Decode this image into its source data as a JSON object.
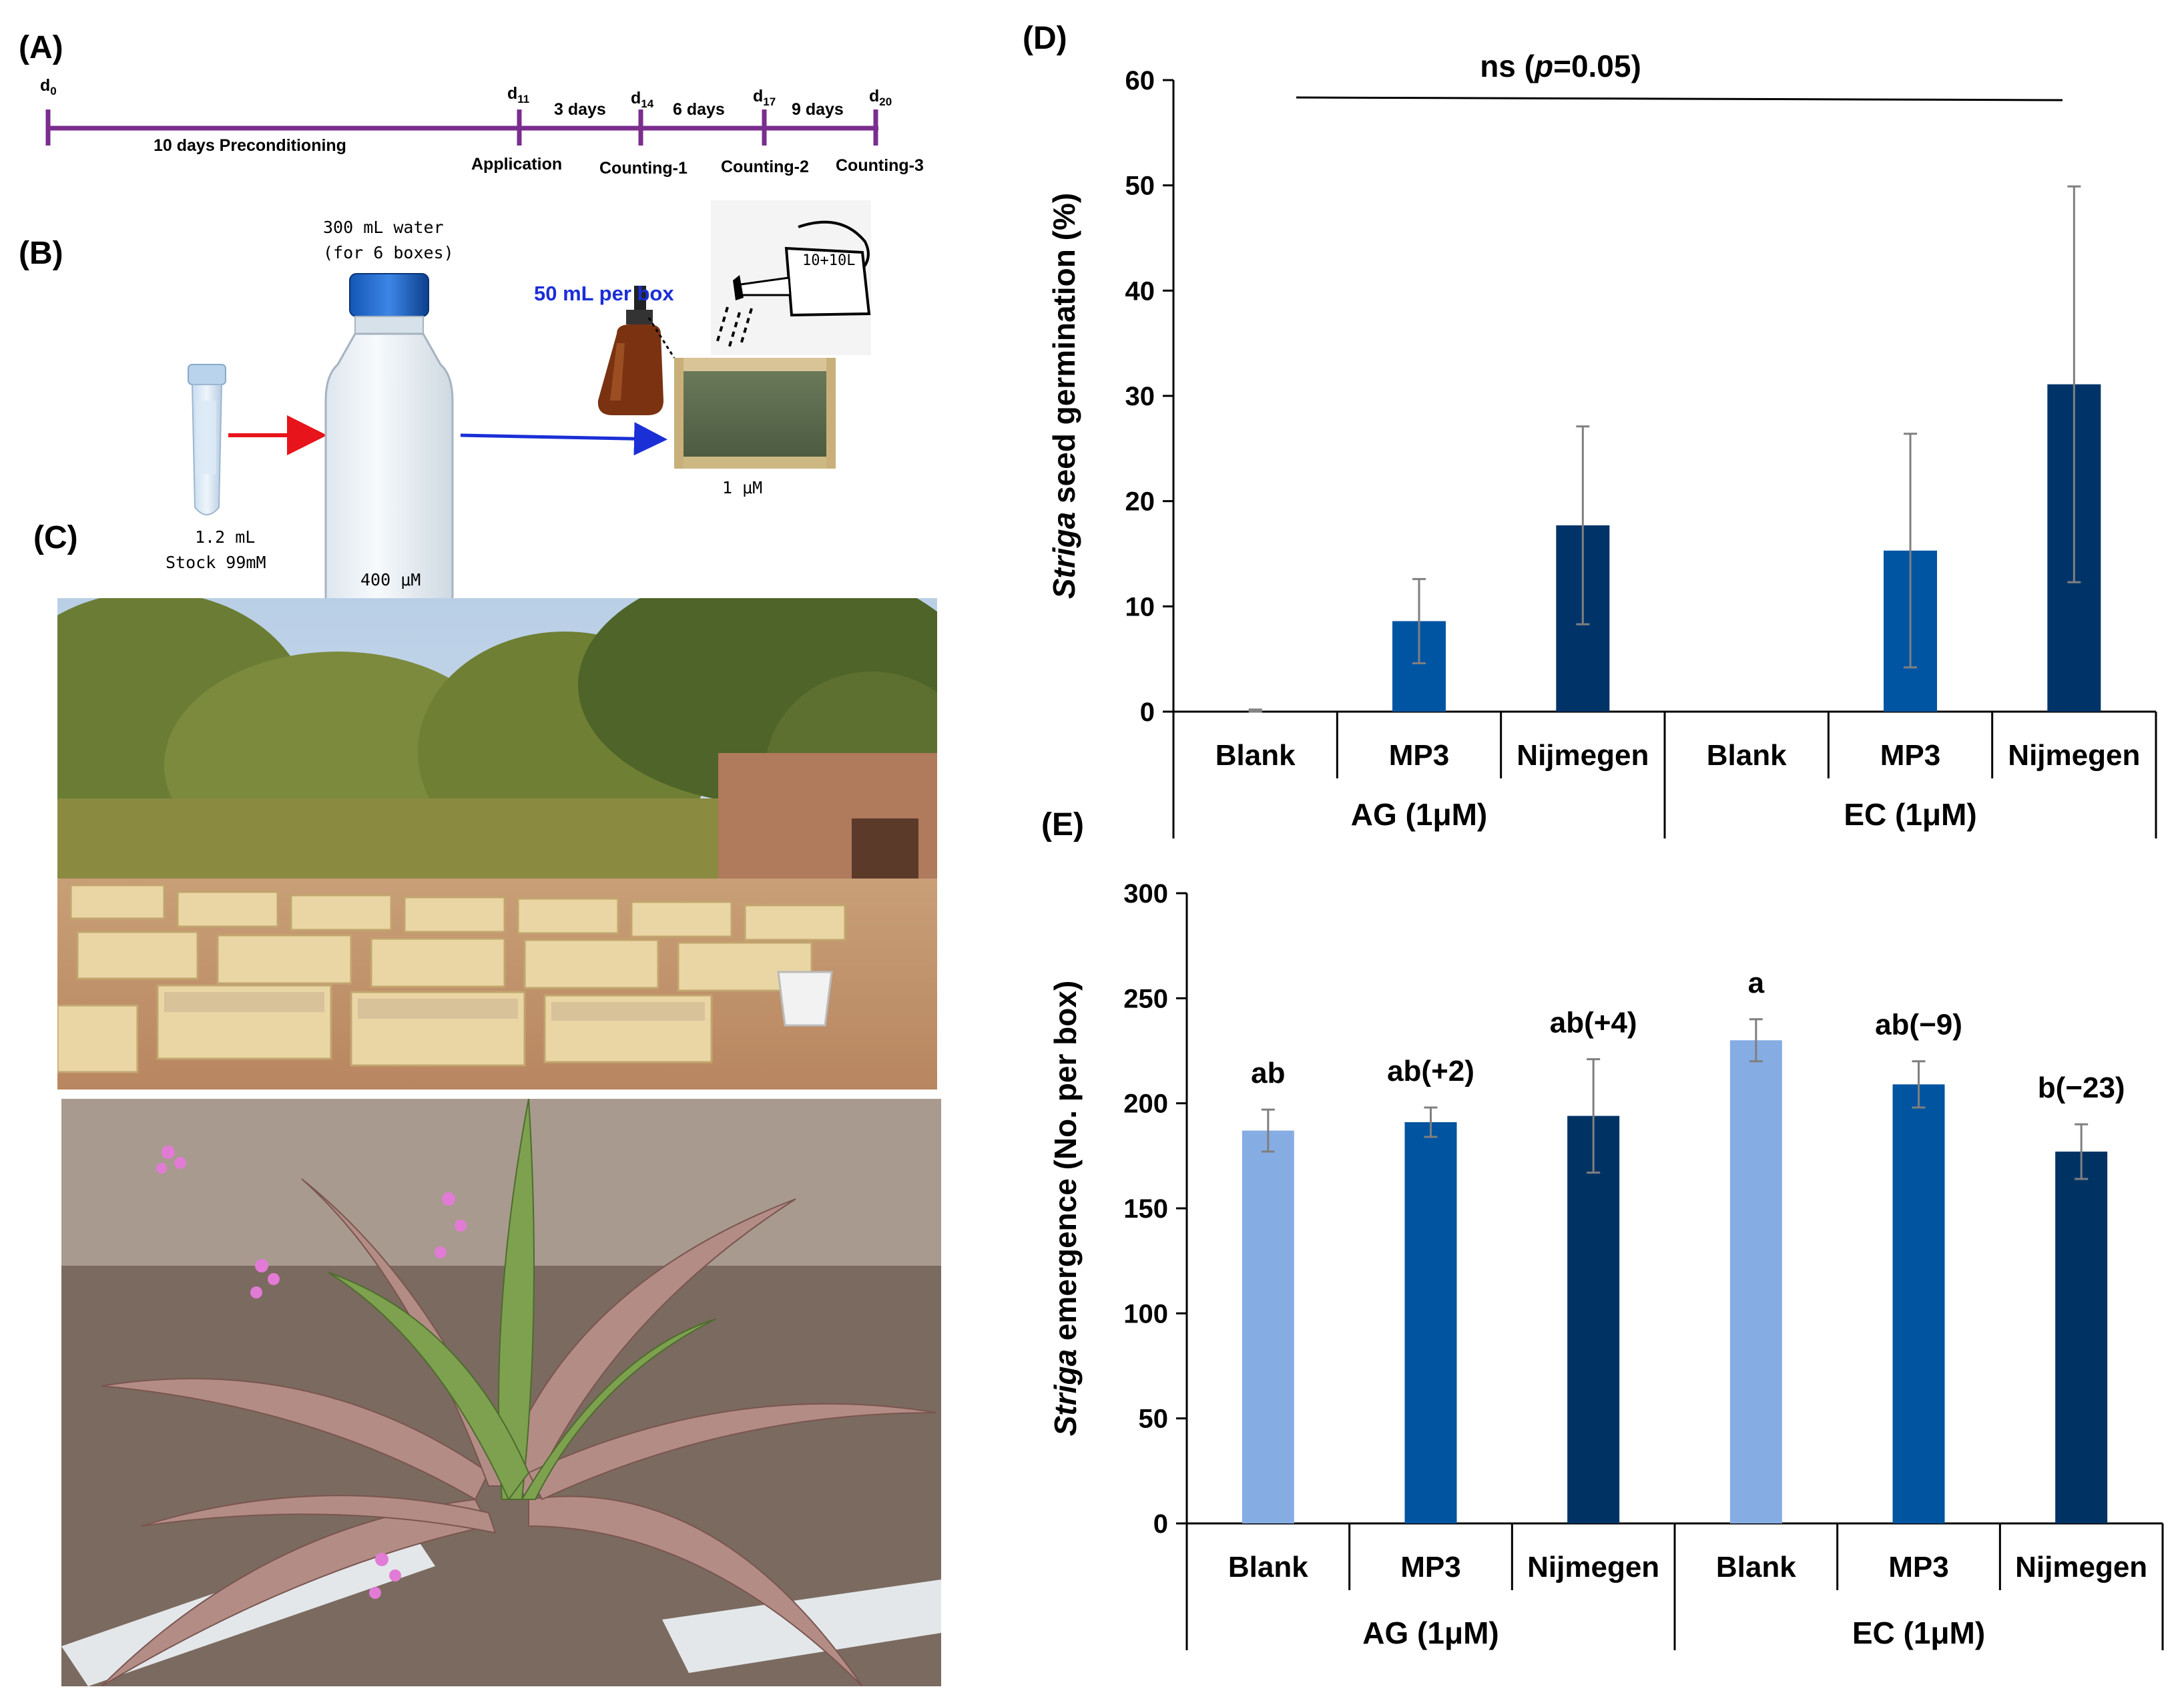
{
  "panels": {
    "a": "(A)",
    "b": "(B)",
    "c": "(C)",
    "d": "(D)",
    "e": "(E)"
  },
  "timeline": {
    "color": "#7b2d8e",
    "days": [
      {
        "base": "d",
        "sub": "0"
      },
      {
        "base": "d",
        "sub": "11"
      },
      {
        "base": "d",
        "sub": "14"
      },
      {
        "base": "d",
        "sub": "17"
      },
      {
        "base": "d",
        "sub": "20"
      }
    ],
    "intervals": [
      "10 days Preconditioning",
      "3 days",
      "6 days",
      "9 days"
    ],
    "events": [
      "Application",
      "Counting-1",
      "Counting-2",
      "Counting-3"
    ]
  },
  "schematic": {
    "stock_volume": "1.2 mL",
    "stock_conc": "Stock 99mM",
    "water_line1": "300 mL water",
    "water_line2": "(for 6 boxes)",
    "bottle_conc": "400 μM",
    "spray_label": "50 mL per box",
    "can_label": "10+10L",
    "box_conc": "1 μM",
    "arrow_red": "#e8141b",
    "arrow_blue": "#1a2fd6"
  },
  "chart_data": [
    {
      "type": "bar",
      "panel": "D",
      "title": "ns (p=0.05)",
      "title_parts": [
        "ns (",
        "p",
        "=0.05)"
      ],
      "ylabel_italic": "Striga",
      "ylabel_rest": "seed germination (%)",
      "ylim": [
        0,
        60
      ],
      "yticks": [
        0,
        10,
        20,
        30,
        40,
        50,
        60
      ],
      "categories": [
        "Blank",
        "MP3",
        "Nijmegen",
        "Blank",
        "MP3",
        "Nijmegen"
      ],
      "groups": [
        "AG (1μM)",
        "EC (1μM)"
      ],
      "values": [
        0,
        8.6,
        17.7,
        0,
        15.3,
        31.1
      ],
      "errors": [
        0.2,
        4.0,
        9.4,
        0,
        11.1,
        18.8
      ],
      "colors": [
        "#003a70",
        "#0055a3",
        "#003468",
        "#003a70",
        "#0055a3",
        "#003468"
      ]
    },
    {
      "type": "bar",
      "panel": "E",
      "ylabel_italic": "Striga",
      "ylabel_rest": "emergence (No. per box)",
      "ylim": [
        0,
        300
      ],
      "yticks": [
        0,
        50,
        100,
        150,
        200,
        250,
        300
      ],
      "categories": [
        "Blank",
        "MP3",
        "Nijmegen",
        "Blank",
        "MP3",
        "Nijmegen"
      ],
      "groups": [
        "AG (1μM)",
        "EC (1μM)"
      ],
      "values": [
        187,
        191,
        194,
        230,
        209,
        177
      ],
      "errors": [
        10,
        7,
        27,
        10,
        11,
        13
      ],
      "annotations": [
        "ab",
        "ab(+2)",
        "ab(+4)",
        "a",
        "ab(−9)",
        "b(−23)"
      ],
      "colors": [
        "#86ade3",
        "#0054a0",
        "#003364",
        "#86ade3",
        "#0054a0",
        "#003364"
      ]
    }
  ]
}
